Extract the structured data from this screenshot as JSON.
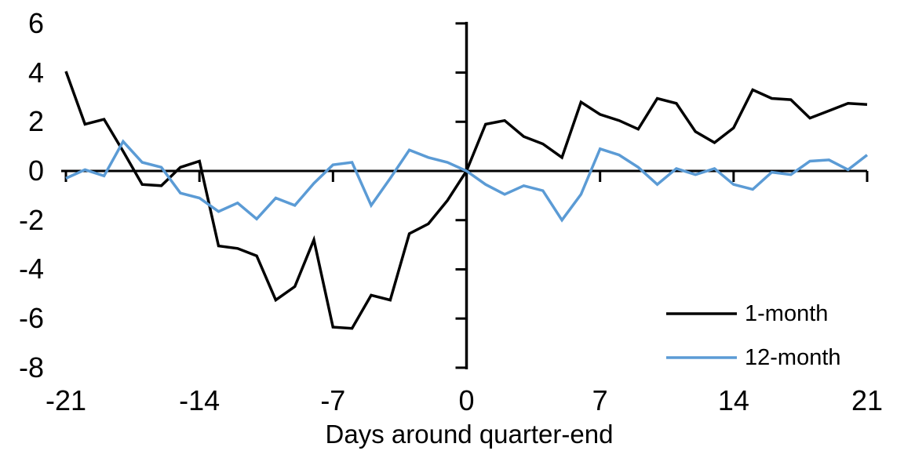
{
  "chart_data": {
    "type": "line",
    "title": "",
    "xlabel": "Days around quarter-end",
    "ylabel": "",
    "xlim": [
      -21,
      21
    ],
    "ylim": [
      -8,
      6
    ],
    "xticks": [
      -21,
      -14,
      -7,
      0,
      7,
      14,
      21
    ],
    "yticks": [
      6,
      4,
      2,
      0,
      -2,
      -4,
      -6,
      -8
    ],
    "grid": false,
    "axis_color": "#000000",
    "legend_position": "inside-lower-right",
    "x": [
      -21,
      -20,
      -19,
      -18,
      -17,
      -16,
      -15,
      -14,
      -13,
      -12,
      -11,
      -10,
      -9,
      -8,
      -7,
      -6,
      -5,
      -4,
      -3,
      -2,
      -1,
      0,
      1,
      2,
      3,
      4,
      5,
      6,
      7,
      8,
      9,
      10,
      11,
      12,
      13,
      14,
      15,
      16,
      17,
      18,
      19,
      20,
      21
    ],
    "series": [
      {
        "name": "1-month",
        "color": "#000000",
        "values": [
          4.05,
          1.9,
          2.1,
          0.8,
          -0.55,
          -0.6,
          0.15,
          0.4,
          -3.05,
          -3.15,
          -3.45,
          -5.25,
          -4.7,
          -2.8,
          -6.35,
          -6.4,
          -5.05,
          -5.25,
          -2.55,
          -2.15,
          -1.2,
          0.0,
          1.9,
          2.05,
          1.4,
          1.1,
          0.55,
          2.8,
          2.3,
          2.05,
          1.7,
          2.95,
          2.75,
          1.6,
          1.15,
          1.75,
          3.3,
          2.95,
          2.9,
          2.15,
          2.45,
          2.75,
          2.7
        ]
      },
      {
        "name": "12-month",
        "color": "#5B9BD5",
        "values": [
          -0.3,
          0.05,
          -0.2,
          1.2,
          0.35,
          0.15,
          -0.9,
          -1.1,
          -1.65,
          -1.3,
          -1.95,
          -1.1,
          -1.4,
          -0.5,
          0.25,
          0.35,
          -1.4,
          -0.3,
          0.85,
          0.55,
          0.35,
          0.0,
          -0.55,
          -0.95,
          -0.6,
          -0.8,
          -2.0,
          -0.95,
          0.9,
          0.65,
          0.15,
          -0.55,
          0.1,
          -0.15,
          0.1,
          -0.55,
          -0.75,
          -0.05,
          -0.15,
          0.4,
          0.45,
          0.05,
          0.65
        ]
      }
    ]
  }
}
